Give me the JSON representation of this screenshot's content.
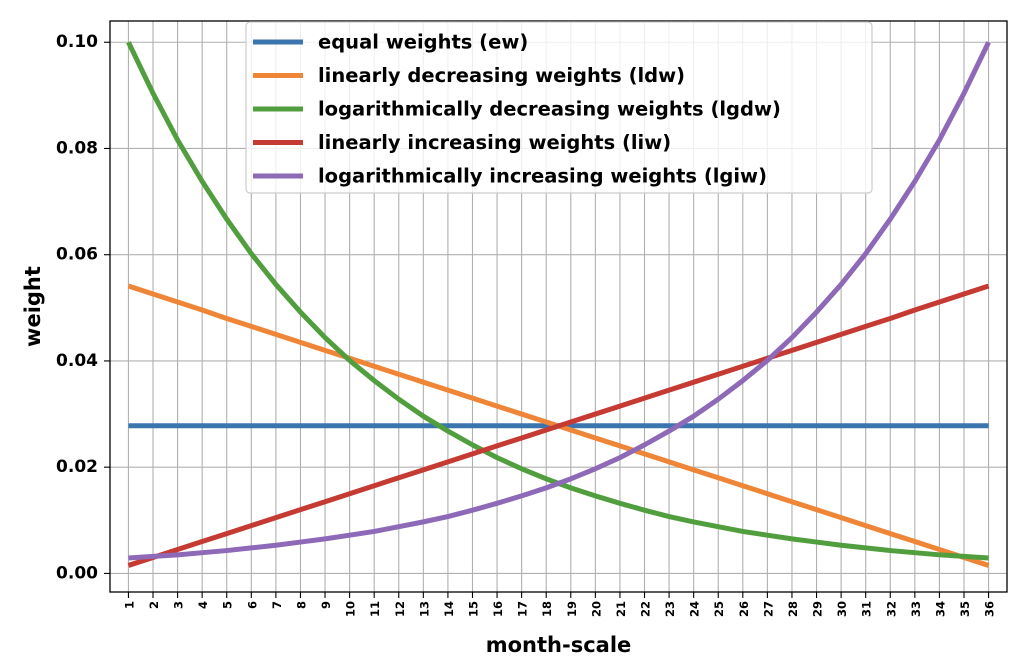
{
  "chart_data": {
    "type": "line",
    "xlabel": "month-scale",
    "ylabel": "weight",
    "x": [
      1,
      2,
      3,
      4,
      5,
      6,
      7,
      8,
      9,
      10,
      11,
      12,
      13,
      14,
      15,
      16,
      17,
      18,
      19,
      20,
      21,
      22,
      23,
      24,
      25,
      26,
      27,
      28,
      29,
      30,
      31,
      32,
      33,
      34,
      35,
      36
    ],
    "xtick_labels": [
      "1",
      "2",
      "3",
      "4",
      "5",
      "6",
      "7",
      "8",
      "9",
      "10",
      "11",
      "12",
      "13",
      "14",
      "15",
      "16",
      "17",
      "18",
      "19",
      "20",
      "21",
      "22",
      "23",
      "24",
      "25",
      "26",
      "27",
      "28",
      "29",
      "30",
      "31",
      "32",
      "33",
      "34",
      "35",
      "36"
    ],
    "xlim": [
      0.25,
      36.75
    ],
    "ylim": [
      -0.0035,
      0.104
    ],
    "yticks": [
      0.0,
      0.02,
      0.04,
      0.06,
      0.08,
      0.1
    ],
    "ytick_labels": [
      "0.00",
      "0.02",
      "0.04",
      "0.06",
      "0.08",
      "0.10"
    ],
    "grid": true,
    "legend_position": "top-center",
    "series": [
      {
        "name": "equal weights (ew)",
        "color": "#3a75ae",
        "values": [
          0.0278,
          0.0278,
          0.0278,
          0.0278,
          0.0278,
          0.0278,
          0.0278,
          0.0278,
          0.0278,
          0.0278,
          0.0278,
          0.0278,
          0.0278,
          0.0278,
          0.0278,
          0.0278,
          0.0278,
          0.0278,
          0.0278,
          0.0278,
          0.0278,
          0.0278,
          0.0278,
          0.0278,
          0.0278,
          0.0278,
          0.0278,
          0.0278,
          0.0278,
          0.0278,
          0.0278,
          0.0278,
          0.0278,
          0.0278,
          0.0278,
          0.0278
        ]
      },
      {
        "name": "linearly decreasing weights (ldw)",
        "color": "#ef8536",
        "values": [
          0.0541,
          0.0526,
          0.0511,
          0.0496,
          0.048,
          0.0465,
          0.045,
          0.0435,
          0.042,
          0.0405,
          0.039,
          0.0375,
          0.036,
          0.0345,
          0.033,
          0.0315,
          0.03,
          0.0285,
          0.027,
          0.0255,
          0.024,
          0.0225,
          0.021,
          0.0195,
          0.018,
          0.0165,
          0.015,
          0.0135,
          0.012,
          0.0105,
          0.009,
          0.0075,
          0.006,
          0.0045,
          0.003,
          0.0015
        ]
      },
      {
        "name": " logarithmically decreasing weights (lgdw)",
        "color": "#519e3e",
        "values": [
          0.1,
          0.0904,
          0.0816,
          0.0738,
          0.0667,
          0.0602,
          0.0544,
          0.0492,
          0.0444,
          0.0401,
          0.0363,
          0.0328,
          0.0296,
          0.0268,
          0.0242,
          0.0218,
          0.0197,
          0.0178,
          0.0161,
          0.0146,
          0.0132,
          0.0119,
          0.0107,
          0.0097,
          0.0088,
          0.0079,
          0.0072,
          0.0065,
          0.0059,
          0.0053,
          0.0048,
          0.0043,
          0.0039,
          0.0035,
          0.0032,
          0.0029
        ]
      },
      {
        "name": "linearly increasing weights (liw)",
        "color": "#c53a32",
        "values": [
          0.0015,
          0.003,
          0.0045,
          0.006,
          0.0075,
          0.009,
          0.0105,
          0.012,
          0.0135,
          0.015,
          0.0165,
          0.018,
          0.0195,
          0.021,
          0.0225,
          0.024,
          0.0255,
          0.027,
          0.0285,
          0.03,
          0.0315,
          0.033,
          0.0345,
          0.036,
          0.0375,
          0.039,
          0.0405,
          0.042,
          0.0435,
          0.045,
          0.0465,
          0.048,
          0.0496,
          0.0511,
          0.0526,
          0.0541
        ]
      },
      {
        "name": "logarithmically increasing weights (lgiw)",
        "color": "#8d69b8",
        "values": [
          0.0029,
          0.0032,
          0.0035,
          0.0039,
          0.0043,
          0.0048,
          0.0053,
          0.0059,
          0.0065,
          0.0072,
          0.0079,
          0.0088,
          0.0097,
          0.0107,
          0.0119,
          0.0132,
          0.0146,
          0.0161,
          0.0178,
          0.0197,
          0.0218,
          0.0242,
          0.0268,
          0.0296,
          0.0328,
          0.0363,
          0.0401,
          0.0444,
          0.0492,
          0.0544,
          0.0602,
          0.0667,
          0.0738,
          0.0816,
          0.0904,
          0.1
        ]
      }
    ]
  }
}
